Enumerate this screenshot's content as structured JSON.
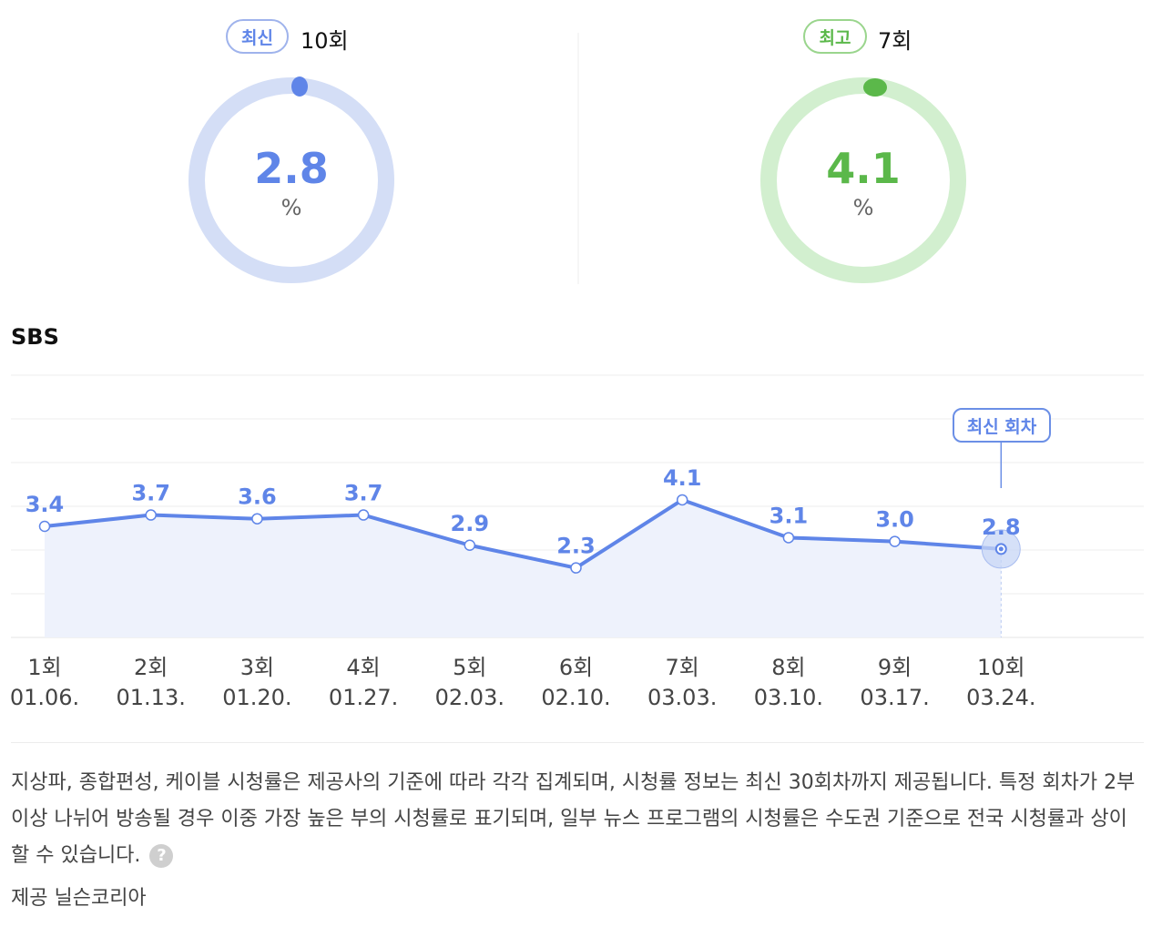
{
  "stats": {
    "latest": {
      "badge": "최신",
      "episode": "10회",
      "value": "2.8",
      "unit": "%",
      "color": "#5f85e8",
      "ring_color": "#d4def6"
    },
    "best": {
      "badge": "최고",
      "episode": "7회",
      "value": "4.1",
      "unit": "%",
      "color": "#5bb84a",
      "ring_color": "#d2efcf"
    }
  },
  "section_title": "SBS",
  "tooltip": "최신 회차",
  "chart_data": {
    "type": "line",
    "categories": [
      "1회",
      "2회",
      "3회",
      "4회",
      "5회",
      "6회",
      "7회",
      "8회",
      "9회",
      "10회"
    ],
    "dates": [
      "01.06.",
      "01.13.",
      "01.20.",
      "01.27.",
      "02.03.",
      "02.10.",
      "03.03.",
      "03.10.",
      "03.17.",
      "03.24."
    ],
    "values": [
      3.4,
      3.7,
      3.6,
      3.7,
      2.9,
      2.3,
      4.1,
      3.1,
      3.0,
      2.8
    ],
    "value_labels": [
      "3.4",
      "3.7",
      "3.6",
      "3.7",
      "2.9",
      "2.3",
      "4.1",
      "3.1",
      "3.0",
      "2.8"
    ],
    "highlight_index": 9,
    "line_color": "#5f85e8",
    "fill_color": "#eef2fc",
    "grid": true,
    "title": "",
    "xlabel": "",
    "ylabel": ""
  },
  "note": "지상파, 종합편성, 케이블 시청률은 제공사의 기준에 따라 각각 집계되며, 시청률 정보는 최신 30회차까지 제공됩니다. 특정 회차가 2부이상 나뉘어 방송될 경우 이중 가장 높은 부의 시청률로 표기되며, 일부 뉴스 프로그램의 시청률은 수도권 기준으로 전국 시청률과 상이할 수 있습니다.",
  "help_icon": "?",
  "provider": "제공 닐슨코리아"
}
